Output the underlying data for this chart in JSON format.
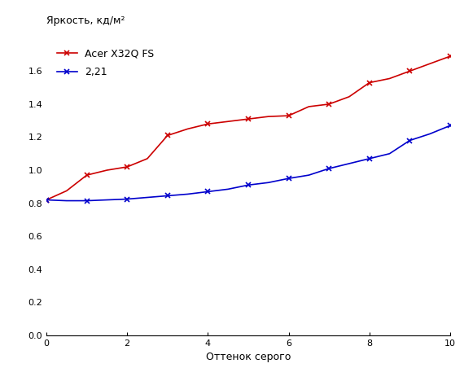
{
  "title": "",
  "ylabel": "Яркость, кд/м²",
  "xlabel": "Оттенок серого",
  "xlim": [
    0,
    10
  ],
  "ylim": [
    0,
    1.8
  ],
  "yticks": [
    0,
    0.2,
    0.4,
    0.6,
    0.8,
    1.0,
    1.2,
    1.4,
    1.6
  ],
  "xticks": [
    0,
    2,
    4,
    6,
    8,
    10
  ],
  "red_label": "Acer X32Q FS",
  "blue_label": "2,21",
  "red_x": [
    0,
    0.5,
    1,
    1.5,
    2,
    2.5,
    3,
    3.5,
    4,
    4.5,
    5,
    5.5,
    6,
    6.5,
    7,
    7.5,
    8,
    8.5,
    9,
    9.5,
    10
  ],
  "red_y": [
    0.82,
    0.875,
    0.97,
    1.0,
    1.02,
    1.07,
    1.21,
    1.25,
    1.28,
    1.295,
    1.31,
    1.325,
    1.33,
    1.385,
    1.4,
    1.445,
    1.53,
    1.555,
    1.6,
    1.645,
    1.69
  ],
  "blue_x": [
    0,
    0.5,
    1,
    1.5,
    2,
    2.5,
    3,
    3.5,
    4,
    4.5,
    5,
    5.5,
    6,
    6.5,
    7,
    7.5,
    8,
    8.5,
    9,
    9.5,
    10
  ],
  "blue_y": [
    0.82,
    0.815,
    0.815,
    0.82,
    0.825,
    0.835,
    0.845,
    0.855,
    0.87,
    0.885,
    0.91,
    0.925,
    0.95,
    0.97,
    1.01,
    1.04,
    1.07,
    1.1,
    1.18,
    1.22,
    1.27
  ],
  "red_marker_x": [
    0,
    1,
    2,
    3,
    4,
    5,
    6,
    7,
    8,
    9,
    10
  ],
  "red_marker_y": [
    0.82,
    0.97,
    1.02,
    1.21,
    1.28,
    1.31,
    1.33,
    1.4,
    1.53,
    1.6,
    1.69
  ],
  "blue_marker_x": [
    0,
    1,
    2,
    3,
    4,
    5,
    6,
    7,
    8,
    9,
    10
  ],
  "blue_marker_y": [
    0.82,
    0.815,
    0.825,
    0.845,
    0.87,
    0.91,
    0.95,
    1.01,
    1.07,
    1.18,
    1.27
  ],
  "red_color": "#cc0000",
  "blue_color": "#0000cc",
  "line_width": 1.2,
  "marker_size": 5,
  "marker_edge_width": 1.2,
  "bg_color": "#ffffff",
  "ylabel_fontsize": 9,
  "xlabel_fontsize": 9,
  "tick_fontsize": 8,
  "legend_fontsize": 9
}
